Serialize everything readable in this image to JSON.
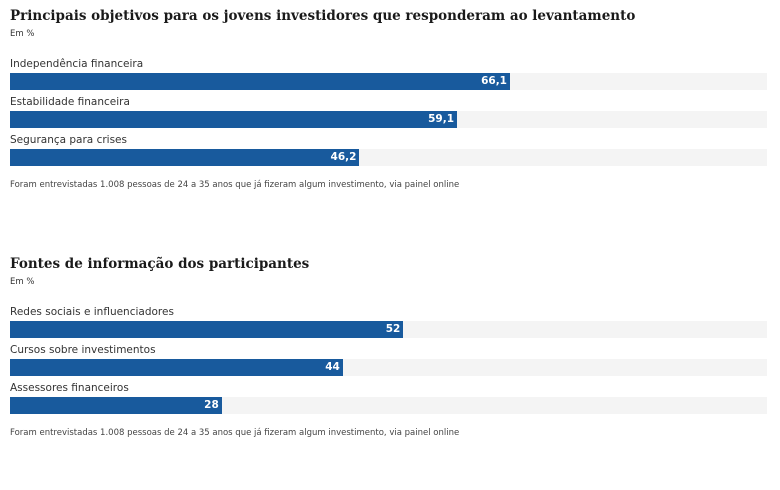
{
  "colors": {
    "bar": "#185a9d",
    "track": "#f4f4f4"
  },
  "chart_data": [
    {
      "type": "bar",
      "orientation": "horizontal",
      "title": "Principais objetivos para os jovens investidores que responderam ao levantamento",
      "unit": "Em %",
      "categories": [
        "Independência financeira",
        "Estabilidade financeira",
        "Segurança para crises"
      ],
      "values": [
        66.1,
        59.1,
        46.2
      ],
      "value_labels": [
        "66,1",
        "59,1",
        "46,2"
      ],
      "xlim": [
        0,
        100
      ],
      "source": "Foram entrevistadas 1.008 pessoas de 24 a 35 anos que já fizeram algum investimento, via painel online"
    },
    {
      "type": "bar",
      "orientation": "horizontal",
      "title": "Fontes de informação dos participantes",
      "unit": "Em %",
      "categories": [
        "Redes sociais e influenciadores",
        "Cursos sobre investimentos",
        "Assessores financeiros"
      ],
      "values": [
        52,
        44,
        28
      ],
      "value_labels": [
        "52",
        "44",
        "28"
      ],
      "xlim": [
        0,
        100
      ],
      "source": "Foram entrevistadas 1.008 pessoas de 24 a 35 anos que já fizeram algum investimento, via painel online"
    }
  ]
}
